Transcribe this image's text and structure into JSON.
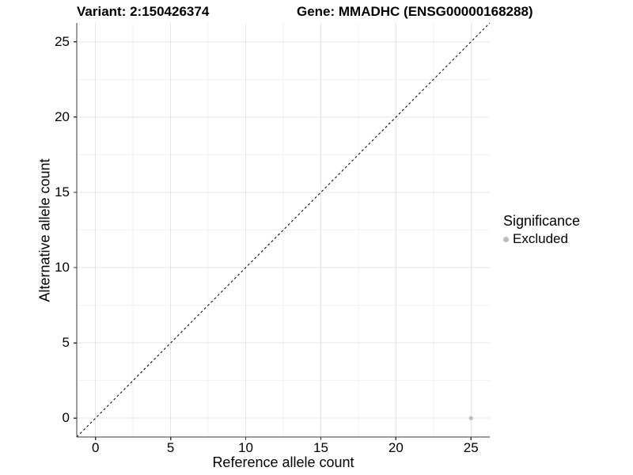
{
  "header": {
    "title_variant": "Variant: 2:150426374",
    "title_gene": "Gene: MMADHC (ENSG00000168288)"
  },
  "chart_data": {
    "type": "scatter",
    "title": "Variant: 2:150426374   Gene: MMADHC (ENSG00000168288)",
    "xlabel": "Reference allele count",
    "ylabel": "Alternative allele count",
    "xlim": [
      -1.25,
      26.25
    ],
    "ylim": [
      -1.25,
      26.25
    ],
    "x_ticks": [
      0,
      5,
      10,
      15,
      20,
      25
    ],
    "y_ticks": [
      0,
      5,
      10,
      15,
      20,
      25
    ],
    "minor_grid_step": 2.5,
    "grid": true,
    "points": [
      {
        "x": 25,
        "y": 0,
        "series": "Excluded"
      }
    ],
    "reference_line": {
      "kind": "identity",
      "equation": "y = x",
      "style": "dashed"
    },
    "legend": {
      "title": "Significance",
      "position": "right",
      "entries": [
        {
          "label": "Excluded",
          "color": "#bdbdbd",
          "marker": "circle"
        }
      ]
    },
    "colors": {
      "point": "#bdbdbd",
      "grid_major": "#e4e4e4",
      "grid_minor": "#f1f1f1",
      "axis_line": "#3a3a3a",
      "reference_line": "#111111",
      "background": "#ffffff"
    }
  }
}
